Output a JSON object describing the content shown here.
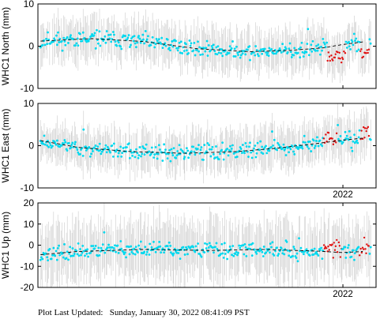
{
  "footer": {
    "label": "Plot Last Updated:",
    "timestamp": "Sunday, January 30, 2022 08:41:09 PST"
  },
  "colors": {
    "point_primary": "#00d8ee",
    "point_recent": "#e01010",
    "error_bar": "#cccccc",
    "trend": "#000000",
    "frame": "#000000"
  },
  "chart_data": [
    {
      "type": "scatter",
      "ylabel": "WHC1 North (mm)",
      "ylim": [
        -10,
        10
      ],
      "yticks": [
        -10,
        0,
        10
      ],
      "xlim": [
        2019.7,
        2022.25
      ],
      "xticks": [
        2022
      ],
      "xtick_labels": [
        ""
      ],
      "grid": false,
      "error_bar_mm": 4,
      "red_windows": [
        [
          2021.88,
          2022.02
        ],
        [
          2022.13,
          2022.2
        ]
      ],
      "trend": {
        "x": [
          2019.72,
          2020.1,
          2020.5,
          2020.9,
          2021.3,
          2021.6,
          2021.85,
          2022.0,
          2022.15
        ],
        "y": [
          1.2,
          1.8,
          1.1,
          -0.6,
          -1.3,
          -1.0,
          -0.4,
          0.4,
          1.0
        ]
      },
      "seed": 11
    },
    {
      "type": "scatter",
      "ylabel": "WHC1 East (mm)",
      "ylim": [
        -10,
        10
      ],
      "yticks": [
        -10,
        0,
        10
      ],
      "xlim": [
        2019.7,
        2022.25
      ],
      "xticks": [
        2022
      ],
      "xtick_labels": [
        "2022"
      ],
      "grid": false,
      "error_bar_mm": 4,
      "red_windows": [
        [
          2021.85,
          2021.96
        ],
        [
          2022.13,
          2022.2
        ]
      ],
      "trend": {
        "x": [
          2019.72,
          2020.0,
          2020.4,
          2020.8,
          2021.2,
          2021.5,
          2021.8,
          2022.0,
          2022.15
        ],
        "y": [
          1.2,
          -0.4,
          -1.4,
          -1.8,
          -1.4,
          -0.6,
          0.5,
          1.3,
          1.8
        ]
      },
      "seed": 23
    },
    {
      "type": "scatter",
      "ylabel": "WHC1 Up (mm)",
      "ylim": [
        -20,
        20
      ],
      "yticks": [
        -20,
        -10,
        0,
        10,
        20
      ],
      "xlim": [
        2019.7,
        2022.25
      ],
      "xticks": [
        2022
      ],
      "xtick_labels": [
        "2022"
      ],
      "grid": false,
      "error_bar_mm": 12,
      "red_windows": [
        [
          2021.85,
          2021.99
        ],
        [
          2022.12,
          2022.2
        ]
      ],
      "trend": {
        "x": [
          2019.72,
          2020.0,
          2020.5,
          2021.0,
          2021.4,
          2021.8,
          2022.0,
          2022.15
        ],
        "y": [
          -4.5,
          -3.0,
          -2.0,
          -2.5,
          -2.0,
          -2.8,
          -3.5,
          -3.0
        ]
      },
      "seed": 37
    }
  ]
}
